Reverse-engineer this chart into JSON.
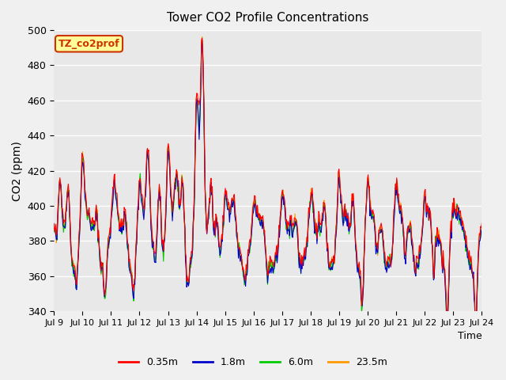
{
  "title": "Tower CO2 Profile Concentrations",
  "ylabel": "CO2 (ppm)",
  "xlabel": "Time",
  "ylim": [
    340,
    500
  ],
  "series_labels": [
    "0.35m",
    "1.8m",
    "6.0m",
    "23.5m"
  ],
  "series_colors": [
    "#ff0000",
    "#0000cc",
    "#00cc00",
    "#ff9900"
  ],
  "legend_label": "TZ_co2prof",
  "legend_bg": "#ffff99",
  "legend_border": "#cc3300",
  "bg_color": "#e8e8e8",
  "plot_bg": "#e8e8e8",
  "grid_color": "#ffffff",
  "x_start": 9,
  "x_end": 24,
  "x_ticks": [
    9,
    10,
    11,
    12,
    13,
    14,
    15,
    16,
    17,
    18,
    19,
    20,
    21,
    22,
    23,
    24
  ],
  "x_tick_labels": [
    "Jul 9",
    "Jul 10",
    "Jul 11",
    "Jul 12",
    "Jul 13",
    "Jul 14",
    "Jul 15",
    "Jul 16",
    "Jul 17",
    "Jul 18",
    "Jul 19",
    "Jul 20",
    "Jul 21",
    "Jul 22",
    "Jul 23",
    "Jul 24"
  ],
  "y_ticks": [
    340,
    360,
    380,
    400,
    420,
    440,
    460,
    480,
    500
  ]
}
